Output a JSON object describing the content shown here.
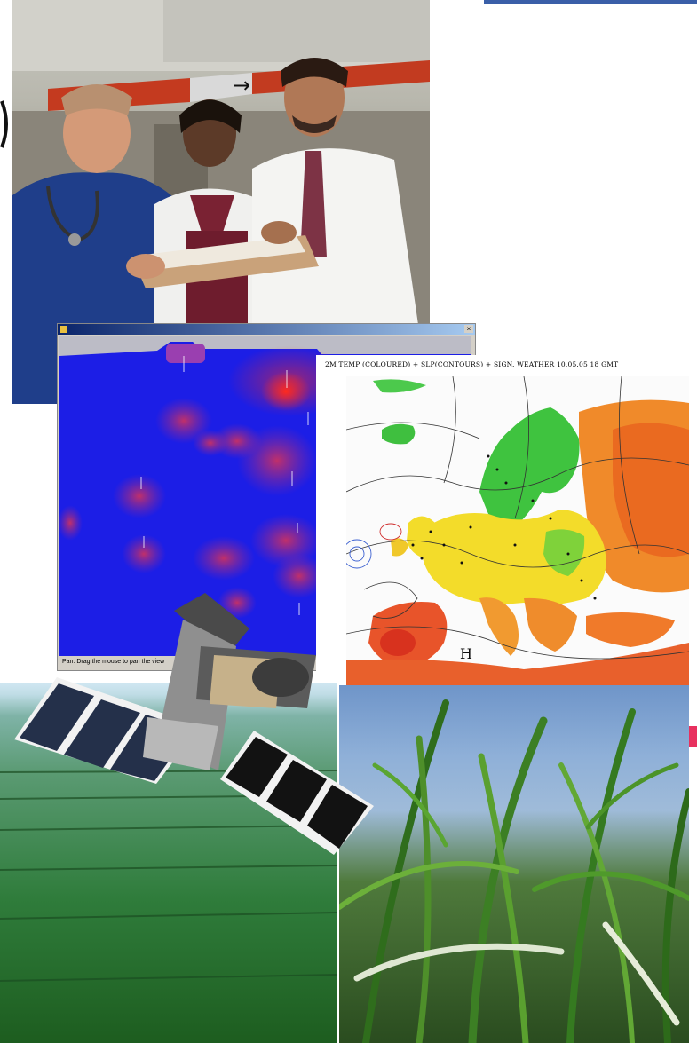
{
  "panels": {
    "doctors_photo": {
      "sign_arrow": "→"
    },
    "visualization_window": {
      "status_text": "Pan: Drag the mouse to pan the view",
      "labels": [
        "",
        "",
        "",
        "",
        "",
        "",
        "",
        "",
        ""
      ]
    },
    "weather_map": {
      "title": "2M TEMP (COLOURED) + SLP(CONTOURS) + SIGN. WEATHER 10.05.05 18 GMT",
      "high_label": "H"
    }
  },
  "colors": {
    "top_rule": "#3a5fa8",
    "vis_background": "#1c1ee6",
    "accent_pink": "#e8315f"
  }
}
